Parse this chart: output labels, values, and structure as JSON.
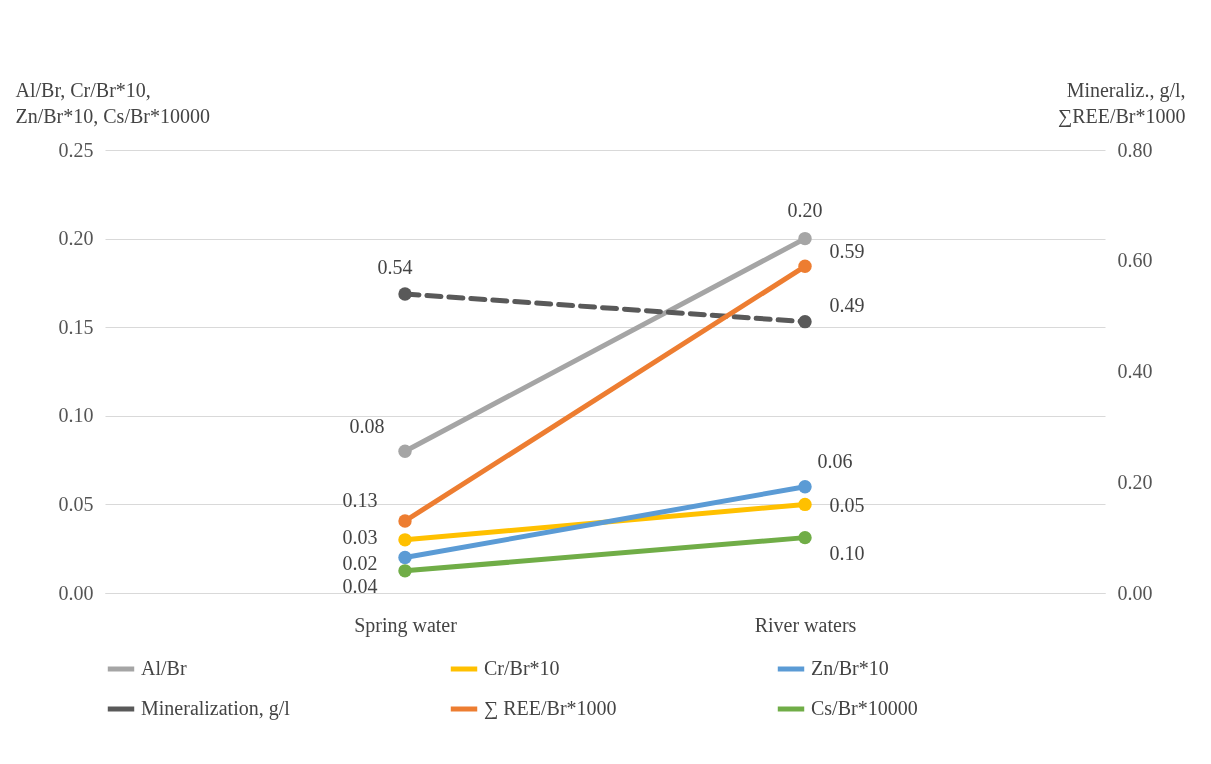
{
  "chart_data": {
    "type": "line",
    "ylabel": "Al/Br, Cr/Br*10,\nZn/Br*10, Cs/Br*10000",
    "y2label": "Mineraliz., g/l,\n∑REE/Br*1000",
    "categories": [
      "Spring water",
      "River waters"
    ],
    "series": [
      {
        "name": "Al/Br",
        "color": "#a5a5a5",
        "values": [
          0.08,
          0.2
        ],
        "value_labels": [
          "0.08",
          "0.20"
        ]
      },
      {
        "name": "Cr/Br*10",
        "color": "#ffc000",
        "values": [
          0.03,
          0.05
        ],
        "value_labels": [
          "0.03",
          "0.05"
        ]
      },
      {
        "name": "Zn/Br*10",
        "color": "#5b9bd5",
        "values": [
          0.02,
          0.06
        ],
        "value_labels": [
          "0.02",
          "0.06"
        ]
      },
      {
        "name": "Mineralization, g/l",
        "color": "#595959",
        "values": [
          0.54,
          0.49
        ],
        "axis": "y2",
        "line_style": "dashed",
        "value_labels": [
          "0.54",
          "0.49"
        ]
      },
      {
        "name": "∑ REE/Br*1000",
        "color": "#ed7d31",
        "values": [
          0.13,
          0.59
        ],
        "axis": "y2",
        "value_labels": [
          "0.13",
          "0.59"
        ]
      },
      {
        "name": "Cs/Br*10000",
        "color": "#70ad47",
        "values": [
          0.04,
          0.1
        ],
        "axis": "y2",
        "value_labels": [
          "0.04",
          "0.10"
        ]
      }
    ],
    "ylim": [
      0,
      0.25
    ],
    "yticks": [
      {
        "value": 0,
        "label": "0.00"
      },
      {
        "value": 0.05,
        "label": "0.05"
      },
      {
        "value": 0.1,
        "label": "0.10"
      },
      {
        "value": 0.15,
        "label": "0.15"
      },
      {
        "value": 0.2,
        "label": "0.20"
      },
      {
        "value": 0.25,
        "label": "0.25"
      }
    ],
    "y2lim": [
      0,
      0.8
    ],
    "y2ticks": [
      {
        "value": 0,
        "label": "0.00"
      },
      {
        "value": 0.2,
        "label": "0.20"
      },
      {
        "value": 0.4,
        "label": "0.40"
      },
      {
        "value": 0.6,
        "label": "0.60"
      },
      {
        "value": 0.8,
        "label": "0.80"
      }
    ],
    "grid": "y",
    "legend": "bottom",
    "marker": "circle",
    "line_style": "solid"
  }
}
